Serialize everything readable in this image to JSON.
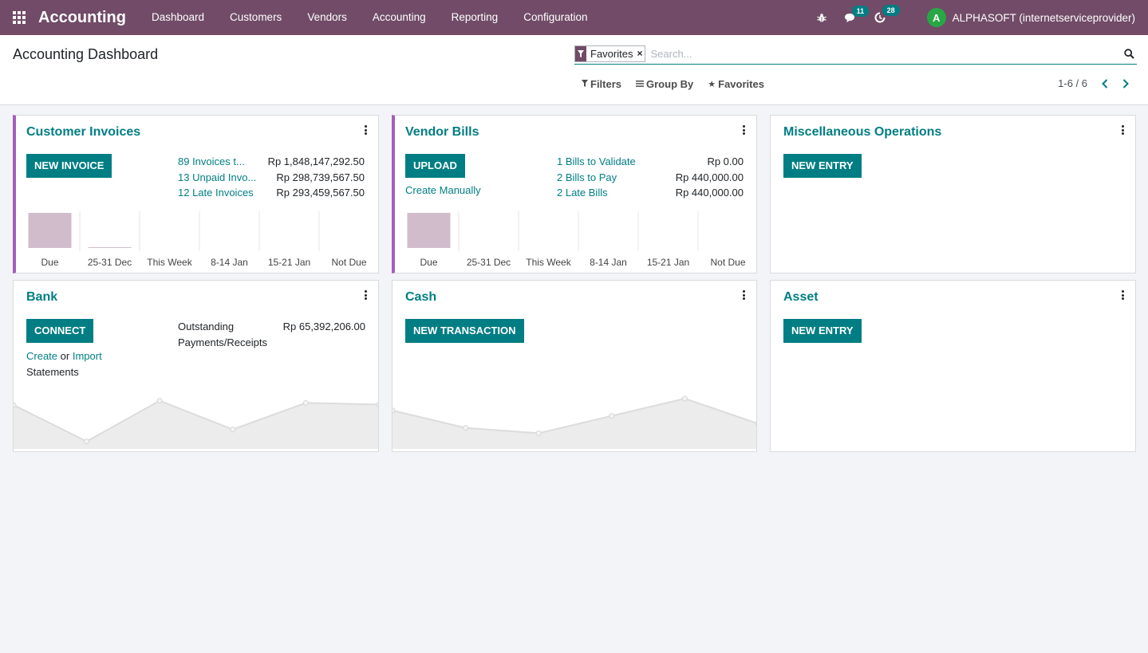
{
  "navbar": {
    "brand": "Accounting",
    "menu": [
      "Dashboard",
      "Customers",
      "Vendors",
      "Accounting",
      "Reporting",
      "Configuration"
    ],
    "messages_count": "11",
    "activities_count": "28",
    "user_initial": "A",
    "user_name": "ALPHASOFT (internetserviceprovider)"
  },
  "control": {
    "title": "Accounting Dashboard",
    "facet_label": "Favorites",
    "facet_close": "×",
    "search_placeholder": "Search...",
    "filters_label": "Filters",
    "groupby_label": "Group By",
    "favorites_label": "Favorites",
    "pager": "1-6 / 6"
  },
  "cards": {
    "customer_invoices": {
      "title": "Customer Invoices",
      "button": "NEW INVOICE",
      "stats": [
        {
          "label": "89 Invoices t...",
          "value": "Rp 1,848,147,292.50"
        },
        {
          "label": "13 Unpaid Invo...",
          "value": "Rp 298,739,567.50"
        },
        {
          "label": "12 Late Invoices",
          "value": "Rp 293,459,567.50"
        }
      ]
    },
    "vendor_bills": {
      "title": "Vendor Bills",
      "button": "UPLOAD",
      "secondary_link": "Create Manually",
      "stats": [
        {
          "label": "1 Bills to Validate",
          "value": "Rp 0.00"
        },
        {
          "label": "2 Bills to Pay",
          "value": "Rp 440,000.00"
        },
        {
          "label": "2 Late Bills",
          "value": "Rp 440,000.00"
        }
      ]
    },
    "misc_operations": {
      "title": "Miscellaneous Operations",
      "button": "NEW ENTRY"
    },
    "bank": {
      "title": "Bank",
      "button": "CONNECT",
      "create_link": "Create",
      "or_text": "or",
      "import_link": "Import",
      "statements_text": "Statements",
      "outstanding_label_1": "Outstanding",
      "outstanding_label_2": "Payments/Receipts",
      "outstanding_value": "Rp 65,392,206.00"
    },
    "cash": {
      "title": "Cash",
      "button": "NEW TRANSACTION"
    },
    "asset": {
      "title": "Asset",
      "button": "NEW ENTRY"
    }
  },
  "chart_data": [
    {
      "type": "bar",
      "categories": [
        "Due",
        "25-31 Dec",
        "This Week",
        "8-14 Jan",
        "15-21 Jan",
        "Not Due"
      ],
      "values": [
        1.0,
        0.02,
        0,
        0,
        0,
        0
      ]
    },
    {
      "type": "bar",
      "categories": [
        "Due",
        "25-31 Dec",
        "This Week",
        "8-14 Jan",
        "15-21 Jan",
        "Not Due"
      ],
      "values": [
        1.0,
        0,
        0,
        0,
        0,
        0
      ]
    },
    {
      "type": "area",
      "values": [
        0.72,
        0.05,
        0.8,
        0.27,
        0.76,
        0.73
      ]
    },
    {
      "type": "area",
      "values": [
        0.62,
        0.3,
        0.2,
        0.52,
        0.84,
        0.38
      ]
    }
  ],
  "colors": {
    "navbar": "#714b67",
    "accent_teal": "#017e84",
    "bar_fill": "#d1bccc",
    "card_accent": "#a55eba"
  }
}
